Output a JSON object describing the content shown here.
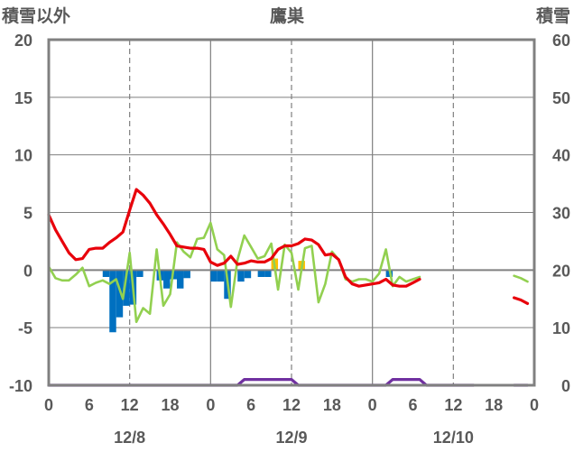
{
  "chart_data": {
    "type": "line",
    "title": "鷹巣",
    "left_axis_label": "積雪以外",
    "right_axis_label": "積雪",
    "left_axis": {
      "min": -10,
      "max": 20,
      "ticks": [
        -10,
        -5,
        0,
        5,
        10,
        15,
        20
      ]
    },
    "right_axis": {
      "min": 0,
      "max": 60,
      "ticks": [
        0,
        10,
        20,
        30,
        40,
        50,
        60
      ]
    },
    "x_range_hours": [
      0,
      72
    ],
    "x_tick_labels": [
      "0",
      "6",
      "12",
      "18",
      "0",
      "6",
      "12",
      "18",
      "0",
      "6",
      "12",
      "18",
      "0"
    ],
    "date_labels": [
      {
        "text": "12/8",
        "at_hour": 12
      },
      {
        "text": "12/9",
        "at_hour": 36
      },
      {
        "text": "12/10",
        "at_hour": 60
      }
    ],
    "grid": {
      "major_vertical_hours": [
        24,
        48
      ],
      "minor_vertical_hours": [
        12,
        36,
        60
      ],
      "zero_line": true
    },
    "colors": {
      "temperature": "#e8000b",
      "dew_point": "#92d050",
      "precip_rain": "#0070c0",
      "precip_snow": "#ffc000",
      "snow_depth": "#7030a0",
      "frame": "#808080"
    },
    "series": [
      {
        "key": "temperature",
        "axis": "left",
        "segments": [
          [
            [
              0,
              4.8
            ],
            [
              1,
              3.5
            ],
            [
              2,
              2.5
            ],
            [
              3,
              1.5
            ],
            [
              4,
              0.9
            ],
            [
              5,
              1.0
            ],
            [
              6,
              1.8
            ],
            [
              7,
              1.9
            ],
            [
              8,
              1.9
            ],
            [
              9,
              2.4
            ],
            [
              10,
              2.8
            ],
            [
              11,
              3.3
            ],
            [
              12,
              5.2
            ],
            [
              13,
              7.0
            ],
            [
              14,
              6.5
            ],
            [
              15,
              5.8
            ],
            [
              16,
              4.8
            ],
            [
              17,
              4.0
            ],
            [
              18,
              3.1
            ],
            [
              19,
              2.1
            ],
            [
              20,
              2.0
            ],
            [
              21,
              1.9
            ],
            [
              22,
              1.9
            ],
            [
              23,
              1.8
            ],
            [
              24,
              0.7
            ],
            [
              25,
              0.4
            ],
            [
              26,
              0.6
            ],
            [
              27,
              1.2
            ],
            [
              28,
              0.5
            ],
            [
              29,
              0.6
            ],
            [
              30,
              0.8
            ],
            [
              31,
              0.7
            ],
            [
              32,
              0.7
            ],
            [
              33,
              1.0
            ],
            [
              34,
              1.8
            ],
            [
              35,
              2.1
            ],
            [
              36,
              2.1
            ],
            [
              37,
              2.3
            ],
            [
              38,
              2.7
            ],
            [
              39,
              2.6
            ],
            [
              40,
              2.2
            ],
            [
              41,
              1.3
            ],
            [
              42,
              1.4
            ],
            [
              43,
              0.9
            ],
            [
              44,
              -0.6
            ],
            [
              45,
              -1.2
            ],
            [
              46,
              -1.4
            ],
            [
              47,
              -1.3
            ],
            [
              48,
              -1.2
            ],
            [
              49,
              -1.1
            ],
            [
              50,
              -0.8
            ],
            [
              51,
              -1.3
            ],
            [
              52,
              -1.4
            ],
            [
              53,
              -1.4
            ],
            [
              54,
              -1.1
            ],
            [
              55,
              -0.8
            ]
          ],
          [
            [
              69,
              -2.4
            ],
            [
              70,
              -2.6
            ],
            [
              71,
              -2.9
            ]
          ]
        ]
      },
      {
        "key": "dew_point",
        "axis": "left",
        "segments": [
          [
            [
              0,
              0.3
            ],
            [
              1,
              -0.7
            ],
            [
              2,
              -0.9
            ],
            [
              3,
              -0.9
            ],
            [
              4,
              -0.4
            ],
            [
              5,
              0.2
            ],
            [
              6,
              -1.4
            ],
            [
              7,
              -1.1
            ],
            [
              8,
              -0.9
            ],
            [
              9,
              -1.2
            ],
            [
              10,
              -0.8
            ],
            [
              11,
              -2.5
            ],
            [
              12,
              1.5
            ],
            [
              13,
              -4.5
            ],
            [
              14,
              -3.3
            ],
            [
              15,
              -3.8
            ],
            [
              16,
              1.8
            ],
            [
              17,
              -3.1
            ],
            [
              18,
              -2.1
            ],
            [
              19,
              2.4
            ],
            [
              20,
              1.6
            ],
            [
              21,
              1.1
            ],
            [
              22,
              2.7
            ],
            [
              23,
              2.8
            ],
            [
              24,
              4.1
            ],
            [
              25,
              1.8
            ],
            [
              26,
              1.3
            ],
            [
              27,
              -3.2
            ],
            [
              28,
              0.9
            ],
            [
              29,
              3.0
            ],
            [
              30,
              2.0
            ],
            [
              31,
              1.0
            ],
            [
              32,
              1.2
            ],
            [
              33,
              2.3
            ],
            [
              34,
              -1.7
            ],
            [
              35,
              2.2
            ],
            [
              36,
              1.5
            ],
            [
              37,
              -1.7
            ],
            [
              38,
              1.9
            ],
            [
              39,
              2.1
            ],
            [
              40,
              -2.8
            ],
            [
              41,
              -1.2
            ],
            [
              42,
              1.6
            ],
            [
              43,
              0.9
            ],
            [
              44,
              -0.8
            ],
            [
              45,
              -1.0
            ],
            [
              46,
              -0.8
            ],
            [
              47,
              -0.8
            ],
            [
              48,
              -1.0
            ],
            [
              49,
              -0.3
            ],
            [
              50,
              1.8
            ],
            [
              51,
              -1.4
            ],
            [
              52,
              -0.6
            ],
            [
              53,
              -1.0
            ],
            [
              54,
              -0.8
            ],
            [
              55,
              -0.6
            ]
          ],
          [
            [
              69,
              -0.5
            ],
            [
              70,
              -0.7
            ],
            [
              71,
              -1.0
            ]
          ]
        ]
      },
      {
        "key": "snow_depth",
        "axis": "right",
        "segments": [
          [
            [
              0,
              0
            ],
            [
              28,
              0
            ],
            [
              29,
              1
            ],
            [
              36,
              1
            ],
            [
              37,
              0
            ],
            [
              50,
              0
            ],
            [
              51,
              1
            ],
            [
              55,
              1
            ],
            [
              56,
              0
            ],
            [
              63,
              0
            ]
          ],
          [
            [
              69,
              0
            ],
            [
              71,
              0
            ]
          ]
        ]
      }
    ],
    "precipitation": {
      "axis": "left",
      "rain_bars": [
        {
          "hour": 8,
          "value": -0.6
        },
        {
          "hour": 9,
          "value": -5.4
        },
        {
          "hour": 10,
          "value": -4.1
        },
        {
          "hour": 11,
          "value": -3.1
        },
        {
          "hour": 12,
          "value": -3.0
        },
        {
          "hour": 13,
          "value": -0.6
        },
        {
          "hour": 16,
          "value": -0.9
        },
        {
          "hour": 17,
          "value": -1.6
        },
        {
          "hour": 18,
          "value": -0.8
        },
        {
          "hour": 19,
          "value": -1.6
        },
        {
          "hour": 20,
          "value": -0.7
        },
        {
          "hour": 24,
          "value": -1.0
        },
        {
          "hour": 25,
          "value": -1.0
        },
        {
          "hour": 26,
          "value": -2.5
        },
        {
          "hour": 28,
          "value": -1.0
        },
        {
          "hour": 29,
          "value": -0.7
        },
        {
          "hour": 31,
          "value": -0.6
        },
        {
          "hour": 32,
          "value": -0.6
        },
        {
          "hour": 50,
          "value": -0.6
        }
      ],
      "snow_bars": [
        {
          "hour": 33,
          "value": 1.0
        },
        {
          "hour": 37,
          "value": 0.8
        }
      ]
    }
  }
}
